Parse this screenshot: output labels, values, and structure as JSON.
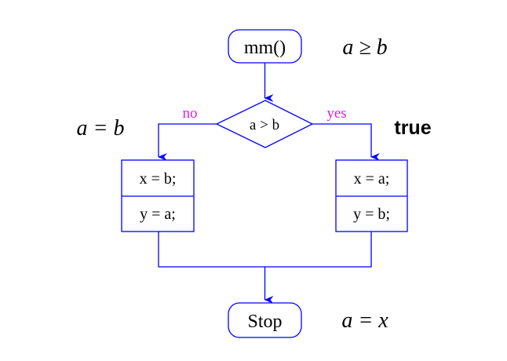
{
  "diagram": {
    "start_node": {
      "label": "mm()"
    },
    "decision_node": {
      "label": "a > b"
    },
    "branch_no": {
      "label": "no"
    },
    "branch_yes": {
      "label": "yes"
    },
    "left_box": {
      "line1": "x = b;",
      "line2": "y = a;"
    },
    "right_box": {
      "line1": "x = a;",
      "line2": "y = b;"
    },
    "stop_node": {
      "label": "Stop"
    },
    "annotations": {
      "precondition": "a ≥ b",
      "left_assertion": "a = b",
      "right_assertion": "true",
      "postcondition": "a = x"
    }
  },
  "colors": {
    "flow": "#0000ff",
    "branch_label": "#e020e0",
    "text": "#000000"
  }
}
